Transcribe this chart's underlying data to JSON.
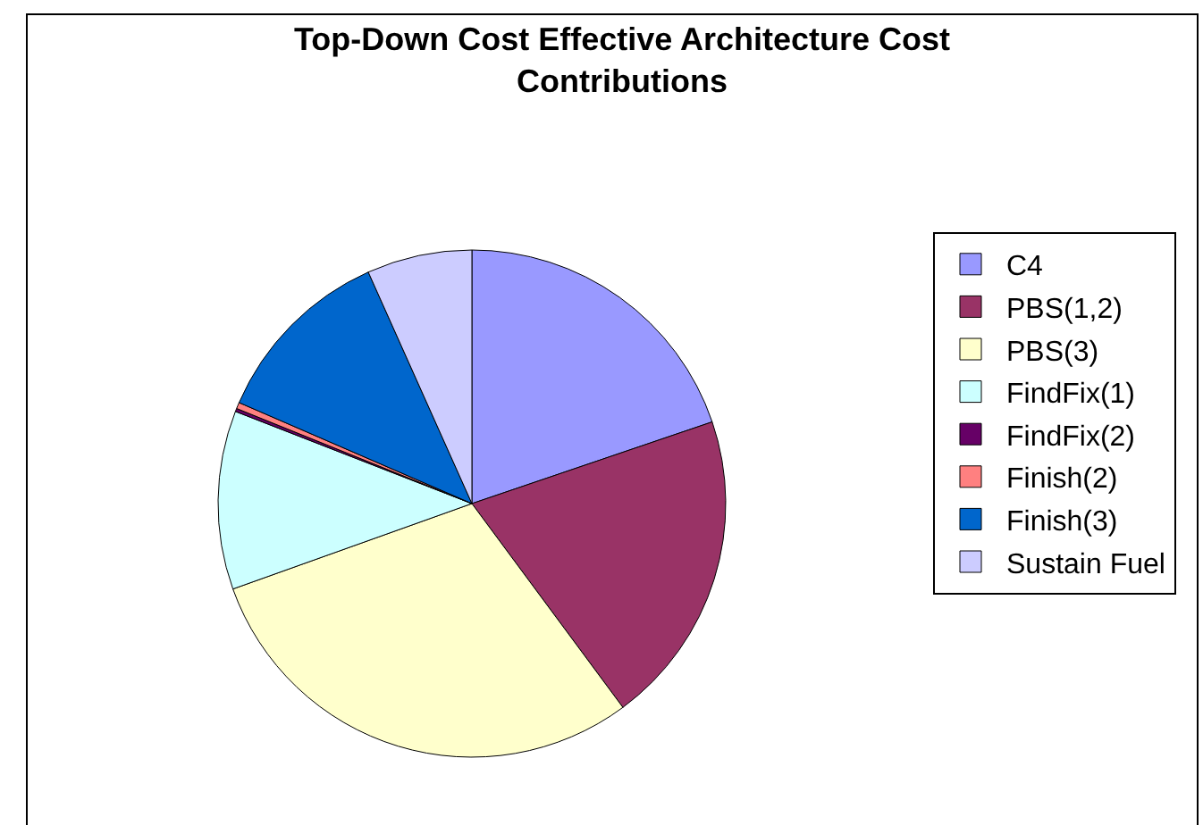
{
  "chart_data": {
    "type": "pie",
    "title": "Top-Down Cost Effective Architecture Cost Contributions",
    "categories": [
      "C4",
      "PBS(1,2)",
      "PBS(3)",
      "FindFix(1)",
      "FindFix(2)",
      "Finish(2)",
      "Finish(3)",
      "Sustain Fuel"
    ],
    "values": [
      19.8,
      20.1,
      29.7,
      11.4,
      0.2,
      0.4,
      11.8,
      6.7
    ],
    "colors": [
      "#9999ff",
      "#993366",
      "#ffffcc",
      "#ccffff",
      "#660066",
      "#ff8080",
      "#0066cc",
      "#ccccff"
    ],
    "legend": "right"
  }
}
